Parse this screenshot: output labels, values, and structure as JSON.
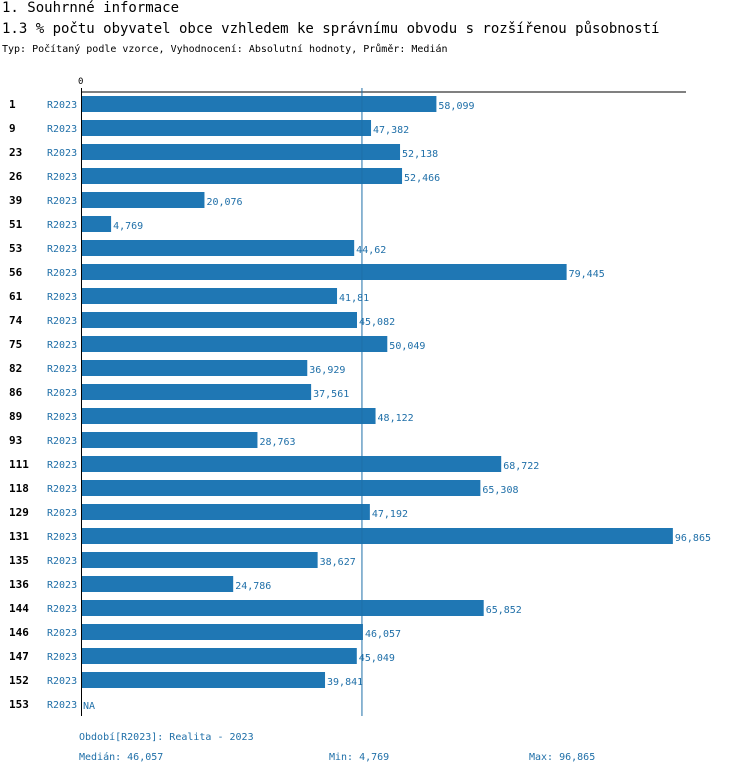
{
  "header": {
    "section": "1. Souhrnné informace",
    "title": "1.3 % počtu obyvatel obce vzhledem ke správnímu obvodu s rozšířenou působností",
    "meta": "Typ: Počítaný podle vzorce, Vyhodnocení: Absolutní hodnoty, Průměr: Medián"
  },
  "colors": {
    "bar": "#1f77b4",
    "label": "#1f6fa8",
    "axis": "#000000",
    "median_line": "#1f6fa8"
  },
  "chart_data": {
    "type": "bar",
    "orientation": "horizontal",
    "title": "1.3 % počtu obyvatel obce vzhledem ke správnímu obvodu s rozšířenou působností",
    "xlim": [
      0,
      100
    ],
    "x_zero_label": "0",
    "series_name": "R2023",
    "categories": [
      "1",
      "9",
      "23",
      "26",
      "39",
      "51",
      "53",
      "56",
      "61",
      "74",
      "75",
      "82",
      "86",
      "89",
      "93",
      "111",
      "118",
      "129",
      "131",
      "135",
      "136",
      "144",
      "146",
      "147",
      "152",
      "153"
    ],
    "period_labels": [
      "R2023",
      "R2023",
      "R2023",
      "R2023",
      "R2023",
      "R2023",
      "R2023",
      "R2023",
      "R2023",
      "R2023",
      "R2023",
      "R2023",
      "R2023",
      "R2023",
      "R2023",
      "R2023",
      "R2023",
      "R2023",
      "R2023",
      "R2023",
      "R2023",
      "R2023",
      "R2023",
      "R2023",
      "R2023",
      "R2023"
    ],
    "values": [
      58.099,
      47.382,
      52.138,
      52.466,
      20.076,
      4.769,
      44.62,
      79.445,
      41.81,
      45.082,
      50.049,
      36.929,
      37.561,
      48.122,
      28.763,
      68.722,
      65.308,
      47.192,
      96.865,
      38.627,
      24.786,
      65.852,
      46.057,
      45.049,
      39.841,
      null
    ],
    "value_labels": [
      "58,099",
      "47,382",
      "52,138",
      "52,466",
      "20,076",
      "4,769",
      "44,62",
      "79,445",
      "41,81",
      "45,082",
      "50,049",
      "36,929",
      "37,561",
      "48,122",
      "28,763",
      "68,722",
      "65,308",
      "47,192",
      "96,865",
      "38,627",
      "24,786",
      "65,852",
      "46,057",
      "45,049",
      "39,841",
      "NA"
    ],
    "median": 46.057
  },
  "footer": {
    "period": "Období[R2023]: Realita - 2023",
    "median": "Medián: 46,057",
    "min": "Min: 4,769",
    "max": "Max: 96,865"
  }
}
